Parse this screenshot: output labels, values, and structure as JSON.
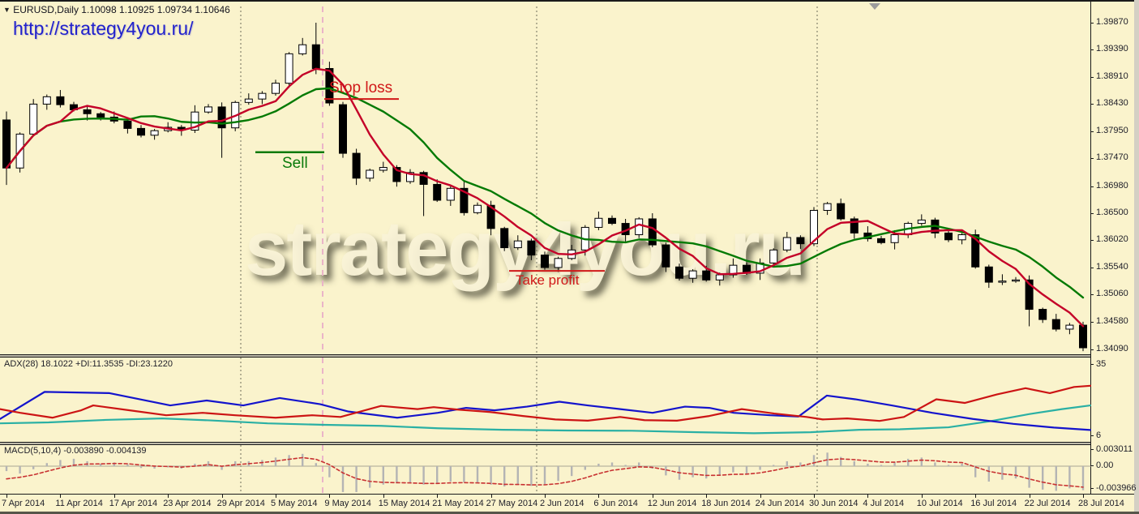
{
  "app": {
    "title_line": "EURUSD,Daily   1.10098 1.10925 1.09734 1.10646",
    "url_watermark": "http://strategy4you.ru/"
  },
  "annotations": {
    "stop_loss": "Stop loss",
    "sell": "Sell",
    "take_profit": "Take profit",
    "big_watermark": "strategy4you.ru"
  },
  "colors": {
    "background": "#faf3cc",
    "bull_candle": "#ffffff",
    "bear_candle": "#000000",
    "candle_outline": "#000000",
    "ma_fast": "#c40028",
    "ma_slow": "#047a04",
    "plus_di": "#1414cc",
    "minus_di": "#cc1414",
    "adx_line": "#2ab0a4",
    "histogram": "#b4b4b4",
    "signal": "#c83232",
    "grid": "#6e6e5a",
    "event_line": "#eab4c8",
    "annotation_red": "#d01818",
    "annotation_green": "#0a7a0a"
  },
  "price_axis": {
    "labels": [
      1.3987,
      1.3939,
      1.3891,
      1.3843,
      1.3795,
      1.3747,
      1.3698,
      1.365,
      1.3602,
      1.3554,
      1.3506,
      1.3458,
      1.3409
    ]
  },
  "time_axis": {
    "labels": [
      "7 Apr 2014",
      "11 Apr 2014",
      "17 Apr 2014",
      "23 Apr 2014",
      "29 Apr 2014",
      "5 May 2014",
      "9 May 2014",
      "15 May 2014",
      "21 May 2014",
      "27 May 2014",
      "2 Jun 2014",
      "6 Jun 2014",
      "12 Jun 2014",
      "18 Jun 2014",
      "24 Jun 2014",
      "30 Jun 2014",
      "4 Jul 2014",
      "10 Jul 2014",
      "16 Jul 2014",
      "22 Jul 2014",
      "28 Jul 2014"
    ]
  },
  "adx_panel": {
    "label": "ADX(28) 18.1022 +DI:11.3535 -DI:23.1220",
    "axis_max": "35",
    "axis_min": "6"
  },
  "macd_panel": {
    "label": "MACD(5,10,4) -0.003890 -0.004139",
    "axis_labels": [
      "0.003011",
      "0.00",
      "-0.003966"
    ]
  },
  "chart_data": {
    "type": "candlestick",
    "symbol": "EURUSD",
    "timeframe": "Daily",
    "title_ohlc": [
      1.10098,
      1.10925,
      1.09734,
      1.10646
    ],
    "ylim": [
      1.3387,
      1.4025
    ],
    "closes": [
      1.373,
      1.379,
      1.3843,
      1.3856,
      1.3842,
      1.3833,
      1.3826,
      1.382,
      1.3813,
      1.38,
      1.3788,
      1.3796,
      1.3802,
      1.3797,
      1.3829,
      1.3838,
      1.3801,
      1.3846,
      1.3852,
      1.3862,
      1.388,
      1.3932,
      1.3948,
      1.3906,
      1.3845,
      1.3756,
      1.3712,
      1.3726,
      1.3731,
      1.3706,
      1.3722,
      1.3701,
      1.3673,
      1.3694,
      1.3651,
      1.3664,
      1.3623,
      1.3589,
      1.3601,
      1.3576,
      1.3554,
      1.357,
      1.3585,
      1.3625,
      1.3641,
      1.3632,
      1.3612,
      1.364,
      1.3594,
      1.3555,
      1.3535,
      1.3548,
      1.3532,
      1.3541,
      1.3558,
      1.3544,
      1.3562,
      1.3585,
      1.3607,
      1.3596,
      1.3655,
      1.3667,
      1.364,
      1.3615,
      1.3605,
      1.3598,
      1.3612,
      1.3632,
      1.3638,
      1.3615,
      1.3603,
      1.3612,
      1.3555,
      1.3528,
      1.353,
      1.3532,
      1.348,
      1.3462,
      1.3445,
      1.3452,
      1.3412
    ],
    "first_open": 1.3815,
    "wick_up": [
      0.0006,
      0.0003,
      0.0009,
      0.0004,
      0.0012,
      0.0005,
      0.0008,
      0.0003,
      0.001,
      0.0004
    ],
    "wick_down": [
      0.0004,
      0.0008,
      0.0003,
      0.001,
      0.0005,
      0.0003,
      0.0012,
      0.0006,
      0.0004,
      0.0009
    ],
    "overrides": {
      "0": {
        "high": 1.383,
        "low": 1.37
      },
      "16": {
        "low": 1.3748
      },
      "22": {
        "high": 1.396
      },
      "23": {
        "high": 1.3987
      },
      "25": {
        "open": 1.3842,
        "low": 1.3748
      },
      "31": {
        "low": 1.3645
      },
      "76": {
        "low": 1.345
      },
      "80": {
        "low": 1.3406
      }
    },
    "ma_fast_period": 5,
    "ma_slow_period": 10,
    "adx_lines": {
      "plus_di": [
        [
          0,
          13
        ],
        [
          55,
          24
        ],
        [
          135,
          23.5
        ],
        [
          210,
          18.5
        ],
        [
          255,
          20.5
        ],
        [
          300,
          18.5
        ],
        [
          345,
          21.5
        ],
        [
          395,
          19
        ],
        [
          430,
          16
        ],
        [
          490,
          13.5
        ],
        [
          540,
          15.5
        ],
        [
          575,
          17.5
        ],
        [
          610,
          16.5
        ],
        [
          650,
          18
        ],
        [
          690,
          20
        ],
        [
          725,
          18.5
        ],
        [
          765,
          17
        ],
        [
          805,
          15.5
        ],
        [
          845,
          18
        ],
        [
          875,
          17.5
        ],
        [
          905,
          15.5
        ],
        [
          950,
          14.5
        ],
        [
          985,
          14
        ],
        [
          1020,
          22.5
        ],
        [
          1055,
          21
        ],
        [
          1100,
          18.5
        ],
        [
          1150,
          15.5
        ],
        [
          1200,
          13
        ],
        [
          1250,
          11
        ],
        [
          1300,
          9.5
        ],
        [
          1345,
          8.5
        ]
      ],
      "minus_di": [
        [
          0,
          17
        ],
        [
          25,
          15.5
        ],
        [
          65,
          13.5
        ],
        [
          100,
          16.5
        ],
        [
          115,
          18.5
        ],
        [
          160,
          16.5
        ],
        [
          205,
          14.5
        ],
        [
          250,
          15.5
        ],
        [
          290,
          14.5
        ],
        [
          340,
          13.5
        ],
        [
          385,
          14.5
        ],
        [
          420,
          13.8
        ],
        [
          470,
          18.3
        ],
        [
          515,
          17
        ],
        [
          535,
          17.8
        ],
        [
          565,
          16.8
        ],
        [
          605,
          15.8
        ],
        [
          645,
          14.2
        ],
        [
          685,
          12.8
        ],
        [
          725,
          12.3
        ],
        [
          765,
          13.8
        ],
        [
          795,
          12.5
        ],
        [
          835,
          12.3
        ],
        [
          875,
          14.2
        ],
        [
          915,
          17
        ],
        [
          955,
          15.2
        ],
        [
          995,
          13.8
        ],
        [
          1015,
          12.8
        ],
        [
          1045,
          13.2
        ],
        [
          1085,
          12.2
        ],
        [
          1115,
          13.8
        ],
        [
          1155,
          21
        ],
        [
          1190,
          19.5
        ],
        [
          1230,
          23
        ],
        [
          1265,
          25.5
        ],
        [
          1295,
          23.5
        ],
        [
          1325,
          26
        ],
        [
          1345,
          26.5
        ]
      ],
      "adx": [
        [
          0,
          11.2
        ],
        [
          60,
          11.6
        ],
        [
          130,
          12.6
        ],
        [
          200,
          13.2
        ],
        [
          260,
          12.4
        ],
        [
          330,
          11.2
        ],
        [
          400,
          10.6
        ],
        [
          470,
          10.2
        ],
        [
          540,
          9.2
        ],
        [
          620,
          8.6
        ],
        [
          700,
          8.3
        ],
        [
          780,
          8.2
        ],
        [
          860,
          7.6
        ],
        [
          930,
          7.2
        ],
        [
          1000,
          7.6
        ],
        [
          1060,
          8.6
        ],
        [
          1110,
          8.8
        ],
        [
          1170,
          9.6
        ],
        [
          1220,
          12
        ],
        [
          1270,
          15
        ],
        [
          1310,
          17
        ],
        [
          1345,
          18.5
        ]
      ]
    },
    "macd_histogram": [
      -0.0008,
      -0.0012,
      -0.0005,
      0.0005,
      0.001,
      0.0012,
      0.0008,
      0.0004,
      0.0006,
      0.0003,
      -0.0003,
      -0.0004,
      -0.0002,
      -0.0004,
      0.0004,
      0.0008,
      -0.0006,
      0.0008,
      0.0008,
      0.001,
      0.0014,
      0.0018,
      0.002,
      0.0005,
      -0.0018,
      -0.0042,
      -0.0042,
      -0.0035,
      -0.003,
      -0.0028,
      -0.0028,
      -0.003,
      -0.0028,
      -0.0025,
      -0.0026,
      -0.0028,
      -0.003,
      -0.0033,
      -0.003,
      -0.0032,
      -0.003,
      -0.0024,
      -0.0016,
      -0.0006,
      0.0004,
      0.0006,
      0.0002,
      0.0006,
      -0.0004,
      -0.0015,
      -0.0022,
      -0.0018,
      -0.002,
      -0.0014,
      -0.001,
      -0.0012,
      -0.0006,
      0.0002,
      0.0008,
      0.0006,
      0.0018,
      0.0022,
      0.0015,
      0.0008,
      0.0004,
      0.0002,
      0.0006,
      0.0012,
      0.0014,
      0.0006,
      0.0002,
      0.0004,
      -0.0018,
      -0.0025,
      -0.0022,
      -0.002,
      -0.0035,
      -0.0038,
      -0.004,
      -0.0036,
      -0.0039
    ],
    "macd_signal_seed": -0.0026,
    "month_gridlines_x": [
      297,
      662,
      1008
    ],
    "event_line_x": 398,
    "sell_level": 1.3758,
    "stop_level": 1.3852,
    "take_profit_level": 1.3548,
    "legend_position": "none",
    "grid": "vertical-month-separators"
  }
}
